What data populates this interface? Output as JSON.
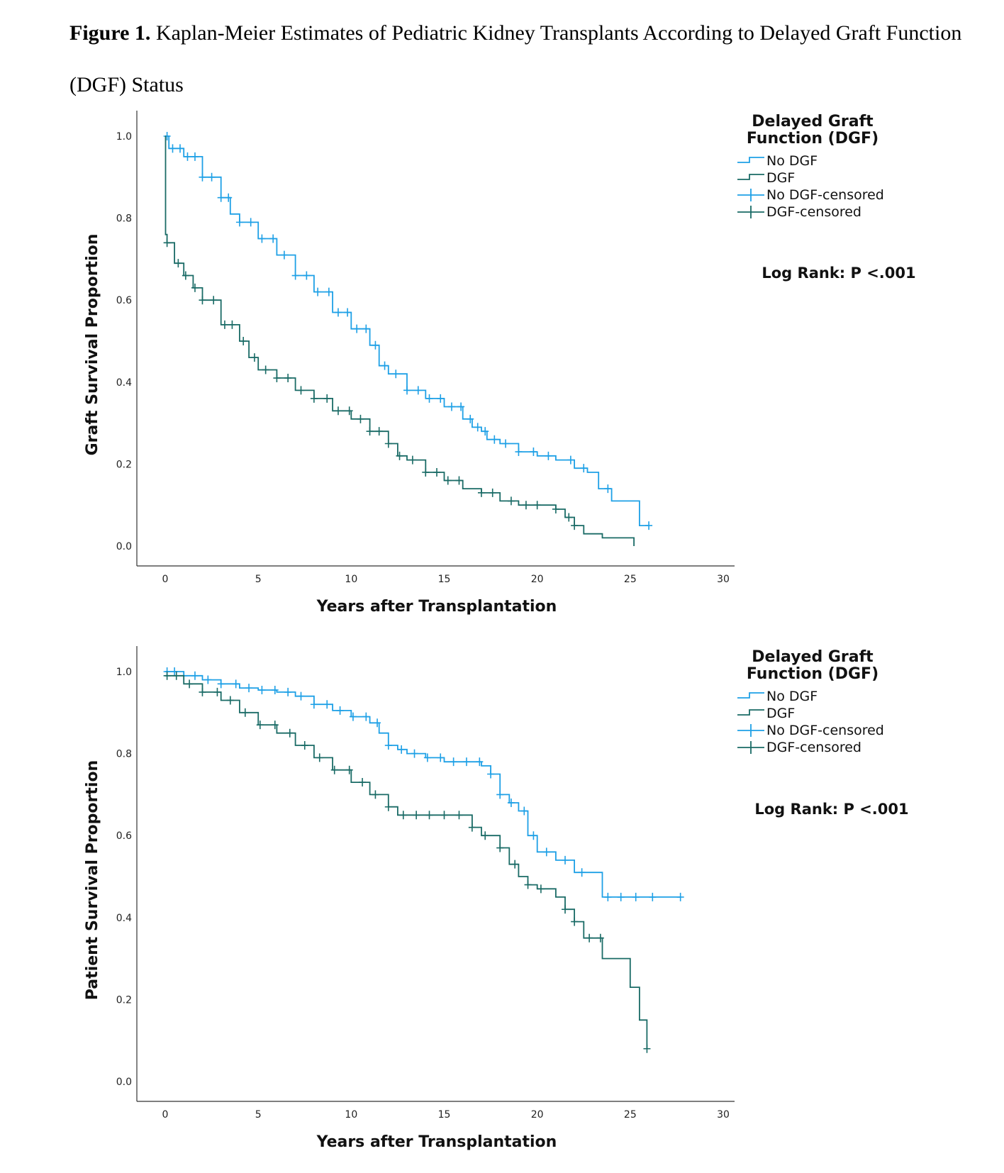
{
  "caption": {
    "label": "Figure 1.",
    "text": " Kaplan-Meier Estimates of Pediatric Kidney Transplants According to Delayed Graft Function (DGF) Status"
  },
  "colors": {
    "no_dgf": "#1ea0e6",
    "dgf": "#1a6b66",
    "axis": "#333333"
  },
  "chart_data": [
    {
      "type": "line",
      "step": true,
      "xlabel": "Years after Transplantation",
      "ylabel": "Graft Survival Proportion",
      "xlim": [
        0,
        30
      ],
      "ylim": [
        0,
        1
      ],
      "xticks": [
        "0",
        "5",
        "10",
        "15",
        "20",
        "25",
        "30"
      ],
      "yticks": [
        "0.0",
        "0.2",
        "0.4",
        "0.6",
        "0.8",
        "1.0"
      ],
      "grid": false,
      "legend": {
        "position": "right",
        "title_lines": [
          "Delayed Graft",
          "Function (DGF)"
        ],
        "items": [
          "No DGF",
          "DGF",
          "No DGF-censored",
          "DGF-censored"
        ]
      },
      "annotation": "Log Rank: P <.001",
      "series": [
        {
          "name": "No DGF",
          "x": [
            0,
            0.2,
            1,
            2,
            3,
            3.5,
            4,
            5,
            6,
            7,
            8,
            9,
            10,
            11,
            11.5,
            12,
            13,
            14,
            15,
            16,
            16.5,
            17,
            17.3,
            18,
            19,
            20,
            21,
            22,
            22.7,
            23.3,
            24,
            25,
            25.5,
            26
          ],
          "y": [
            1.0,
            0.97,
            0.95,
            0.9,
            0.85,
            0.81,
            0.79,
            0.75,
            0.71,
            0.66,
            0.62,
            0.57,
            0.53,
            0.49,
            0.44,
            0.42,
            0.38,
            0.36,
            0.34,
            0.31,
            0.29,
            0.28,
            0.26,
            0.25,
            0.23,
            0.22,
            0.21,
            0.19,
            0.18,
            0.14,
            0.11,
            0.11,
            0.05,
            0.05
          ],
          "censored_x": [
            0.1,
            0.4,
            0.8,
            1.2,
            1.6,
            2.0,
            2.5,
            3.0,
            3.4,
            4.0,
            4.6,
            5.2,
            5.8,
            6.4,
            7.0,
            7.6,
            8.2,
            8.8,
            9.3,
            9.8,
            10.3,
            10.8,
            11.3,
            11.8,
            12.4,
            13.0,
            13.6,
            14.2,
            14.8,
            15.4,
            15.9,
            16.4,
            16.8,
            17.2,
            17.7,
            18.3,
            19.0,
            19.8,
            20.6,
            21.8,
            22.5,
            23.8,
            26.0
          ]
        },
        {
          "name": "DGF",
          "x": [
            0,
            0.02,
            0.1,
            0.5,
            1,
            1.5,
            2,
            3,
            4,
            4.5,
            5,
            6,
            7,
            8,
            9,
            10,
            11,
            12,
            12.5,
            13,
            14,
            15,
            16,
            17,
            18,
            19,
            20,
            21,
            21.5,
            22,
            22.5,
            23.5,
            25.2
          ],
          "y": [
            1.0,
            0.76,
            0.74,
            0.69,
            0.66,
            0.63,
            0.6,
            0.54,
            0.5,
            0.46,
            0.43,
            0.41,
            0.38,
            0.36,
            0.33,
            0.31,
            0.28,
            0.25,
            0.22,
            0.21,
            0.18,
            0.16,
            0.14,
            0.13,
            0.11,
            0.1,
            0.1,
            0.09,
            0.07,
            0.05,
            0.03,
            0.02,
            0.0
          ],
          "censored_x": [
            0.1,
            0.7,
            1.1,
            1.6,
            2.0,
            2.6,
            3.2,
            3.6,
            4.2,
            4.8,
            5.4,
            6.0,
            6.6,
            7.3,
            8.0,
            8.7,
            9.3,
            9.9,
            10.5,
            11.0,
            11.5,
            12.0,
            12.6,
            13.3,
            14.0,
            14.6,
            15.2,
            15.8,
            17.0,
            17.6,
            18.6,
            19.4,
            20.0,
            21.0,
            21.7,
            22.0
          ]
        }
      ]
    },
    {
      "type": "line",
      "step": true,
      "xlabel": "Years after Transplantation",
      "ylabel": "Patient Survival Proportion",
      "xlim": [
        0,
        30
      ],
      "ylim": [
        0,
        1
      ],
      "xticks": [
        "0",
        "5",
        "10",
        "15",
        "20",
        "25",
        "30"
      ],
      "yticks": [
        "0.0",
        "0.2",
        "0.4",
        "0.6",
        "0.8",
        "1.0"
      ],
      "grid": false,
      "legend": {
        "position": "right",
        "title_lines": [
          "Delayed Graft",
          "Function (DGF)"
        ],
        "items": [
          "No DGF",
          "DGF",
          "No DGF-censored",
          "DGF-censored"
        ]
      },
      "annotation": "Log Rank: P <.001",
      "series": [
        {
          "name": "No DGF",
          "x": [
            0,
            1,
            2,
            3,
            4,
            5,
            6,
            7,
            8,
            9,
            10,
            11,
            11.5,
            12,
            12.5,
            13,
            14,
            15,
            16,
            17,
            17.5,
            18,
            18.5,
            19,
            19.5,
            20,
            21,
            22,
            23,
            23.5,
            25,
            27.7
          ],
          "y": [
            1.0,
            0.99,
            0.98,
            0.97,
            0.96,
            0.955,
            0.95,
            0.94,
            0.92,
            0.905,
            0.89,
            0.875,
            0.85,
            0.82,
            0.81,
            0.8,
            0.79,
            0.78,
            0.78,
            0.77,
            0.75,
            0.7,
            0.68,
            0.66,
            0.6,
            0.56,
            0.54,
            0.51,
            0.51,
            0.45,
            0.45,
            0.45
          ],
          "censored_x": [
            0.1,
            0.5,
            1.0,
            1.6,
            2.3,
            3.0,
            3.8,
            4.5,
            5.2,
            5.9,
            6.6,
            7.3,
            8.0,
            8.7,
            9.4,
            10.1,
            10.8,
            11.4,
            12.0,
            12.7,
            13.4,
            14.1,
            14.8,
            15.5,
            16.2,
            16.9,
            17.5,
            18.0,
            18.6,
            19.3,
            19.8,
            20.5,
            21.5,
            22.4,
            23.8,
            24.5,
            25.3,
            26.2,
            27.7
          ]
        },
        {
          "name": "DGF",
          "x": [
            0,
            1,
            2,
            3,
            4,
            5,
            6,
            7,
            8,
            9,
            10,
            11,
            12,
            12.5,
            13,
            14,
            16,
            16.5,
            17,
            18,
            18.5,
            19,
            19.5,
            20,
            21,
            21.5,
            22,
            22.5,
            23.5,
            25,
            25.5,
            25.9
          ],
          "y": [
            0.99,
            0.97,
            0.95,
            0.93,
            0.9,
            0.87,
            0.85,
            0.82,
            0.79,
            0.76,
            0.73,
            0.7,
            0.67,
            0.65,
            0.65,
            0.65,
            0.65,
            0.62,
            0.6,
            0.57,
            0.53,
            0.5,
            0.48,
            0.47,
            0.45,
            0.42,
            0.39,
            0.35,
            0.3,
            0.23,
            0.15,
            0.08
          ],
          "censored_x": [
            0.1,
            0.6,
            1.3,
            2.0,
            2.8,
            3.5,
            4.3,
            5.1,
            5.9,
            6.7,
            7.5,
            8.3,
            9.1,
            9.9,
            10.6,
            11.3,
            12.0,
            12.8,
            13.5,
            14.2,
            15.0,
            15.8,
            16.5,
            17.2,
            18.0,
            18.8,
            19.5,
            20.2,
            21.5,
            22.0,
            22.8,
            23.4,
            25.9
          ]
        }
      ]
    }
  ]
}
